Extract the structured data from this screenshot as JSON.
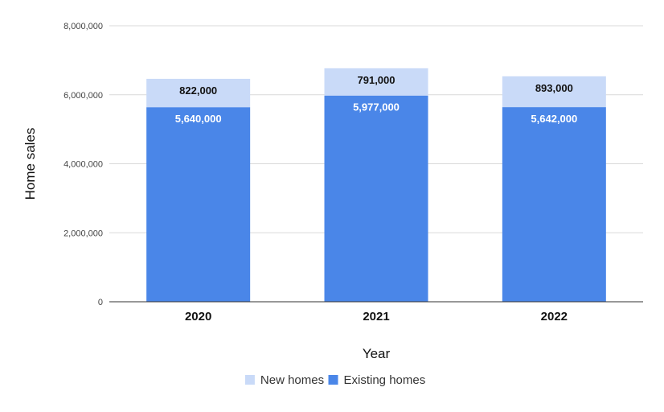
{
  "chart_data": {
    "type": "bar",
    "stacked": true,
    "categories": [
      "2020",
      "2021",
      "2022"
    ],
    "series": [
      {
        "name": "Existing homes",
        "values": [
          5640000,
          5977000,
          5642000
        ],
        "labels": [
          "5,640,000",
          "5,977,000",
          "5,642,000"
        ],
        "color": "#4a86e8",
        "label_color": "#ffffff"
      },
      {
        "name": "New homes",
        "values": [
          822000,
          791000,
          893000
        ],
        "labels": [
          "822,000",
          "791,000",
          "893,000"
        ],
        "color": "#c9daf8",
        "label_color": "#111111"
      }
    ],
    "xlabel": "Year",
    "ylabel": "Home sales",
    "ylim": [
      0,
      8000000
    ],
    "yticks": [
      0,
      2000000,
      4000000,
      6000000,
      8000000
    ],
    "ytick_labels": [
      "0",
      "2,000,000",
      "4,000,000",
      "6,000,000",
      "8,000,000"
    ],
    "grid": true,
    "legend": {
      "position": "bottom",
      "entries": [
        "New homes",
        "Existing homes"
      ]
    }
  }
}
